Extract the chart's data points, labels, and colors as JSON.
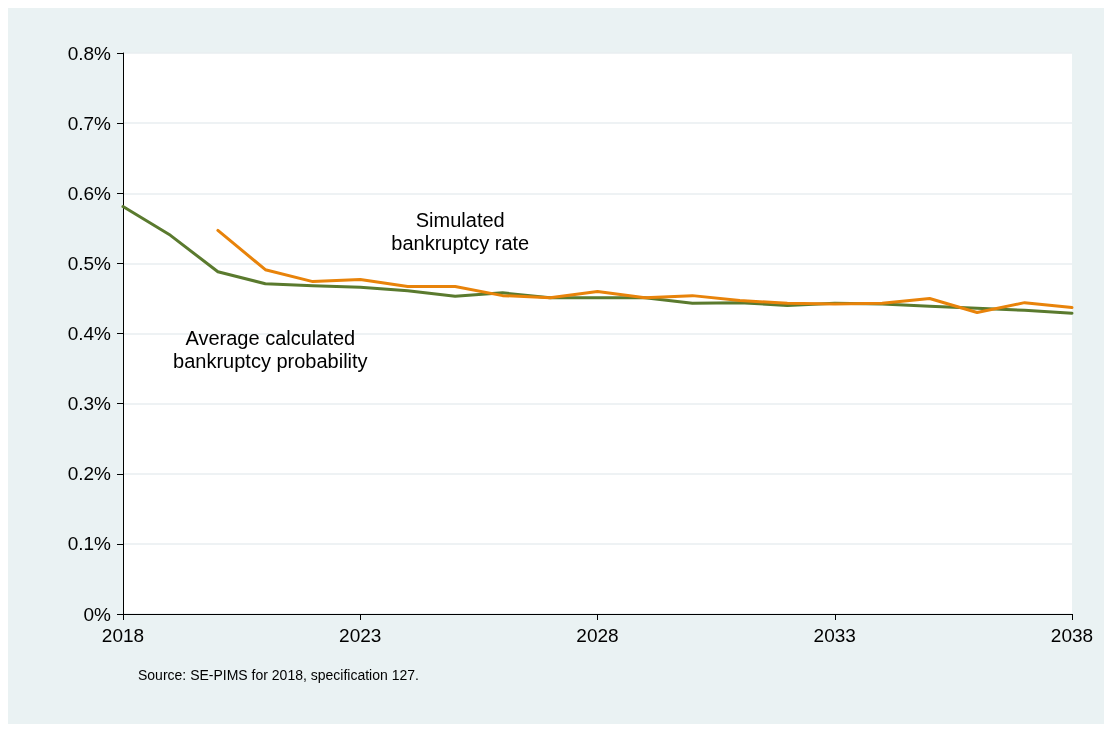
{
  "chart_data": {
    "type": "line",
    "x": [
      2018,
      2019,
      2020,
      2021,
      2022,
      2023,
      2024,
      2025,
      2026,
      2027,
      2028,
      2029,
      2030,
      2031,
      2032,
      2033,
      2034,
      2035,
      2036,
      2037,
      2038
    ],
    "series": [
      {
        "name": "Average calculated\nbankruptcy probability",
        "color": "#5a7a2e",
        "values": [
          0.581,
          0.54,
          0.488,
          0.471,
          0.468,
          0.466,
          0.461,
          0.453,
          0.458,
          0.451,
          0.451,
          0.451,
          0.443,
          0.444,
          0.44,
          0.443,
          0.442,
          0.439,
          0.436,
          0.433,
          0.429
        ]
      },
      {
        "name": "Simulated\nbankruptcy rate",
        "color": "#e8830a",
        "values": [
          null,
          null,
          0.547,
          0.491,
          0.474,
          0.477,
          0.467,
          0.467,
          0.454,
          0.451,
          0.46,
          0.451,
          0.454,
          0.447,
          0.443,
          0.442,
          0.443,
          0.45,
          0.43,
          0.444,
          0.437
        ]
      }
    ],
    "xlim": [
      2018,
      2038
    ],
    "xticks": [
      2018,
      2023,
      2028,
      2033,
      2038
    ],
    "ylim": [
      0,
      0.8
    ],
    "yticks": [
      {
        "value": 0,
        "label": "0%"
      },
      {
        "value": 0.1,
        "label": "0.1%"
      },
      {
        "value": 0.2,
        "label": "0.2%"
      },
      {
        "value": 0.3,
        "label": "0.3%"
      },
      {
        "value": 0.4,
        "label": "0.4%"
      },
      {
        "value": 0.5,
        "label": "0.5%"
      },
      {
        "value": 0.6,
        "label": "0.6%"
      },
      {
        "value": 0.7,
        "label": "0.7%"
      },
      {
        "value": 0.8,
        "label": "0.8%"
      }
    ],
    "grid": "y",
    "marker": "none",
    "line_style": "solid",
    "annotations": [
      "Source: SE-PIMS for 2018, specification 127."
    ]
  }
}
